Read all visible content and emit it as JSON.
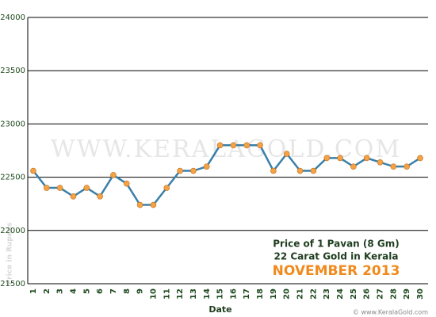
{
  "chart_data": {
    "type": "line",
    "title_lines": [
      "Price of 1 Pavan (8 Gm)",
      "22 Carat Gold in Kerala"
    ],
    "subtitle": "NOVEMBER 2013",
    "watermark": "WWW.KERALAGOLD.COM",
    "credit": "© www.KeralaGold.com",
    "x_label": "Date",
    "y_label": "Price in Rupees",
    "categories": [
      "1",
      "2",
      "3",
      "4",
      "5",
      "6",
      "7",
      "8",
      "9",
      "10",
      "11",
      "12",
      "13",
      "14",
      "15",
      "16",
      "17",
      "18",
      "19",
      "20",
      "21",
      "22",
      "23",
      "24",
      "25",
      "26",
      "27",
      "28",
      "29",
      "30"
    ],
    "series": [
      {
        "name": "Price",
        "color": "#3a80aa",
        "marker_color": "#f5a244",
        "values": [
          22560,
          22400,
          22400,
          22320,
          22400,
          22320,
          22520,
          22440,
          22240,
          22240,
          22400,
          22560,
          22560,
          22600,
          22800,
          22800,
          22800,
          22800,
          22560,
          22720,
          22560,
          22560,
          22680,
          22680,
          22600,
          22680,
          22640,
          22600,
          22600,
          22680
        ]
      }
    ],
    "ylim": [
      21500,
      24000
    ],
    "yticks": [
      21500,
      22000,
      22500,
      23000,
      23500,
      24000
    ],
    "grid": true
  }
}
